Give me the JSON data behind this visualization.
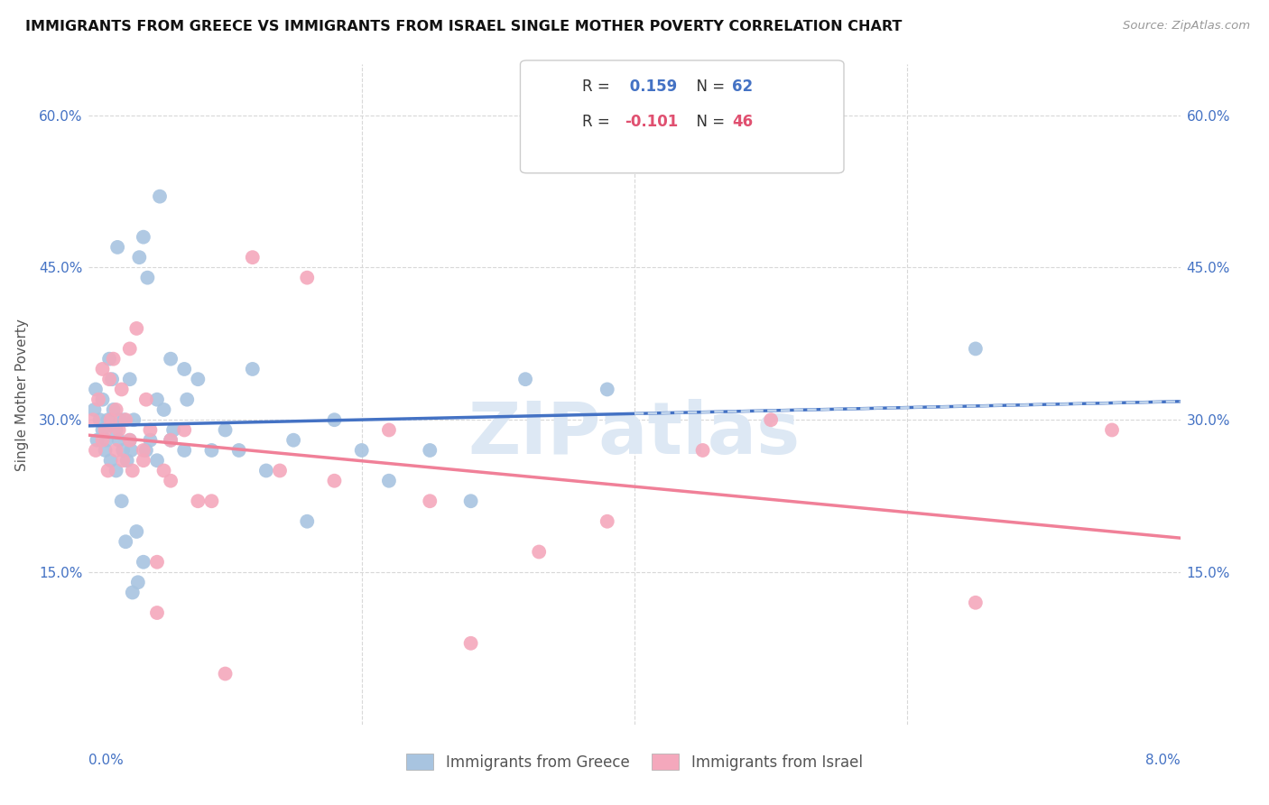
{
  "title": "IMMIGRANTS FROM GREECE VS IMMIGRANTS FROM ISRAEL SINGLE MOTHER POVERTY CORRELATION CHART",
  "source": "Source: ZipAtlas.com",
  "ylabel": "Single Mother Poverty",
  "color_greece": "#a8c4e0",
  "color_israel": "#f4a8bc",
  "line_color_greece": "#4472c4",
  "line_color_israel": "#f08098",
  "line_color_greece_dashed": "#c0d4ec",
  "legend_label1": "Immigrants from Greece",
  "legend_label2": "Immigrants from Israel",
  "legend_r1": "R = ",
  "legend_r1_val": " 0.159",
  "legend_n1": "  N = ",
  "legend_n1_val": "62",
  "legend_r2": "R = ",
  "legend_r2_val": "-0.101",
  "legend_n2": "  N = ",
  "legend_n2_val": "46",
  "x_range": [
    0.0,
    0.08
  ],
  "y_range": [
    0.0,
    0.65
  ],
  "greece_x": [
    0.0004,
    0.0005,
    0.0006,
    0.0008,
    0.001,
    0.001,
    0.0012,
    0.0013,
    0.0014,
    0.0015,
    0.0016,
    0.0017,
    0.0018,
    0.002,
    0.002,
    0.0021,
    0.0022,
    0.0023,
    0.0024,
    0.0025,
    0.0026,
    0.0027,
    0.0028,
    0.003,
    0.003,
    0.0031,
    0.0032,
    0.0033,
    0.0035,
    0.0036,
    0.0037,
    0.004,
    0.004,
    0.0042,
    0.0043,
    0.0045,
    0.005,
    0.005,
    0.0052,
    0.0055,
    0.006,
    0.006,
    0.0062,
    0.007,
    0.007,
    0.0072,
    0.008,
    0.009,
    0.01,
    0.011,
    0.012,
    0.013,
    0.015,
    0.016,
    0.018,
    0.02,
    0.022,
    0.025,
    0.028,
    0.032,
    0.038,
    0.065
  ],
  "greece_y": [
    0.31,
    0.33,
    0.28,
    0.3,
    0.29,
    0.32,
    0.27,
    0.28,
    0.3,
    0.36,
    0.26,
    0.34,
    0.31,
    0.25,
    0.29,
    0.47,
    0.28,
    0.3,
    0.22,
    0.27,
    0.3,
    0.18,
    0.26,
    0.28,
    0.34,
    0.27,
    0.13,
    0.3,
    0.19,
    0.14,
    0.46,
    0.16,
    0.48,
    0.27,
    0.44,
    0.28,
    0.32,
    0.26,
    0.52,
    0.31,
    0.28,
    0.36,
    0.29,
    0.35,
    0.27,
    0.32,
    0.34,
    0.27,
    0.29,
    0.27,
    0.35,
    0.25,
    0.28,
    0.2,
    0.3,
    0.27,
    0.24,
    0.27,
    0.22,
    0.34,
    0.33,
    0.37
  ],
  "israel_x": [
    0.0003,
    0.0005,
    0.0007,
    0.001,
    0.001,
    0.0012,
    0.0014,
    0.0015,
    0.0016,
    0.0018,
    0.002,
    0.002,
    0.0022,
    0.0024,
    0.0025,
    0.0027,
    0.003,
    0.003,
    0.0032,
    0.0035,
    0.004,
    0.004,
    0.0042,
    0.0045,
    0.005,
    0.005,
    0.0055,
    0.006,
    0.006,
    0.007,
    0.008,
    0.009,
    0.01,
    0.012,
    0.014,
    0.016,
    0.018,
    0.022,
    0.025,
    0.028,
    0.033,
    0.038,
    0.045,
    0.05,
    0.065,
    0.075
  ],
  "israel_y": [
    0.3,
    0.27,
    0.32,
    0.28,
    0.35,
    0.29,
    0.25,
    0.34,
    0.3,
    0.36,
    0.27,
    0.31,
    0.29,
    0.33,
    0.26,
    0.3,
    0.28,
    0.37,
    0.25,
    0.39,
    0.27,
    0.26,
    0.32,
    0.29,
    0.11,
    0.16,
    0.25,
    0.24,
    0.28,
    0.29,
    0.22,
    0.22,
    0.05,
    0.46,
    0.25,
    0.44,
    0.24,
    0.29,
    0.22,
    0.08,
    0.17,
    0.2,
    0.27,
    0.3,
    0.12,
    0.29
  ],
  "ytick_vals": [
    0.0,
    0.15,
    0.3,
    0.45,
    0.6
  ],
  "ytick_labels_left": [
    "",
    "15.0%",
    "30.0%",
    "45.0%",
    "60.0%"
  ],
  "ytick_labels_right": [
    "",
    "15.0%",
    "30.0%",
    "45.0%",
    "60.0%"
  ],
  "xtick_left_label": "0.0%",
  "xtick_right_label": "8.0%",
  "watermark": "ZIPatlas"
}
